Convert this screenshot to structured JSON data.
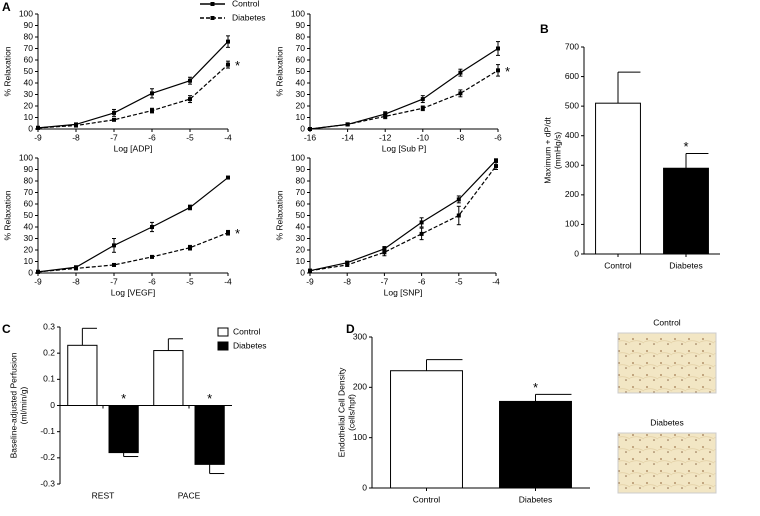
{
  "chart_data": [
    {
      "type": "line",
      "panel": "A",
      "xlabel": "Log [ADP]",
      "ylabel": "% Relaxation",
      "x": [
        -9,
        -8,
        -7,
        -6,
        -5,
        -4
      ],
      "xlim": [
        -9,
        -4
      ],
      "xticks": [
        -9,
        -8,
        -7,
        -6,
        -5,
        -4
      ],
      "ylim": [
        0,
        100
      ],
      "yticks": [
        0,
        10,
        20,
        30,
        40,
        50,
        60,
        70,
        80,
        90,
        100
      ],
      "legend": "top-right",
      "series": [
        {
          "name": "Control",
          "color": "#000000",
          "style": "solid",
          "values": [
            1,
            4,
            14,
            31,
            42,
            76
          ],
          "errors": [
            0.5,
            1,
            3,
            4,
            3,
            5
          ]
        },
        {
          "name": "Diabetes",
          "color": "#000000",
          "style": "dashed",
          "values": [
            1,
            3,
            8,
            16,
            26,
            56
          ],
          "errors": [
            0.5,
            1,
            1,
            2,
            3,
            3
          ]
        }
      ],
      "annotations": [
        "*"
      ]
    },
    {
      "type": "line",
      "xlabel": "Log [Sub P]",
      "ylabel": "% Relaxation",
      "x": [
        -16,
        -14,
        -12,
        -10,
        -8,
        -6
      ],
      "xlim": [
        -16,
        -6
      ],
      "xticks": [
        -16,
        -14,
        -12,
        -10,
        -8,
        -6
      ],
      "ylim": [
        0,
        100
      ],
      "yticks": [
        0,
        10,
        20,
        30,
        40,
        50,
        60,
        70,
        80,
        90,
        100
      ],
      "series": [
        {
          "name": "Control",
          "color": "#000000",
          "style": "solid",
          "values": [
            0,
            4,
            13,
            26,
            49,
            70
          ],
          "errors": [
            0.5,
            1,
            2,
            3,
            3,
            6
          ]
        },
        {
          "name": "Diabetes",
          "color": "#000000",
          "style": "dashed",
          "values": [
            0,
            4,
            11,
            18,
            31,
            51
          ],
          "errors": [
            0.5,
            1,
            2,
            2,
            3,
            5
          ]
        }
      ],
      "annotations": [
        "*"
      ]
    },
    {
      "type": "line",
      "xlabel": "Log [VEGF]",
      "ylabel": "% Relaxation",
      "x": [
        -9,
        -8,
        -7,
        -6,
        -5,
        -4
      ],
      "xlim": [
        -9,
        -4
      ],
      "xticks": [
        -9,
        -8,
        -7,
        -6,
        -5,
        -4
      ],
      "ylim": [
        0,
        100
      ],
      "yticks": [
        0,
        10,
        20,
        30,
        40,
        50,
        60,
        70,
        80,
        90,
        100
      ],
      "series": [
        {
          "name": "Control",
          "color": "#000000",
          "style": "solid",
          "values": [
            1,
            5,
            24,
            40,
            57,
            83
          ],
          "errors": [
            0.5,
            1,
            6,
            4,
            2,
            1
          ]
        },
        {
          "name": "Diabetes",
          "color": "#000000",
          "style": "dashed",
          "values": [
            1,
            4,
            7,
            14,
            22,
            35
          ],
          "errors": [
            0.5,
            1,
            1,
            1,
            2,
            2
          ]
        }
      ],
      "annotations": [
        "*"
      ]
    },
    {
      "type": "line",
      "xlabel": "Log [SNP]",
      "ylabel": "% Relaxation",
      "x": [
        -9,
        -8,
        -7,
        -6,
        -5,
        -4
      ],
      "xlim": [
        -9,
        -4
      ],
      "xticks": [
        -9,
        -8,
        -7,
        -6,
        -5,
        -4
      ],
      "ylim": [
        0,
        100
      ],
      "yticks": [
        0,
        10,
        20,
        30,
        40,
        50,
        60,
        70,
        80,
        90,
        100
      ],
      "series": [
        {
          "name": "Control",
          "color": "#000000",
          "style": "solid",
          "values": [
            2,
            9,
            21,
            44,
            64,
            98
          ],
          "errors": [
            0.5,
            1,
            2,
            4,
            3,
            1
          ]
        },
        {
          "name": "Diabetes",
          "color": "#000000",
          "style": "dashed",
          "values": [
            2,
            7,
            18,
            34,
            50,
            93
          ],
          "errors": [
            0.5,
            1,
            3,
            5,
            8,
            3
          ]
        }
      ]
    },
    {
      "type": "bar",
      "panel": "B",
      "ylabel": [
        "Maximum + dP/dt",
        "(mmHg/s)"
      ],
      "categories": [
        "Control",
        "Diabetes"
      ],
      "values": [
        510,
        290
      ],
      "errors": [
        105,
        50
      ],
      "colors": [
        "#ffffff",
        "#000000"
      ],
      "ylim": [
        0,
        700
      ],
      "yticks": [
        0,
        100,
        200,
        300,
        400,
        500,
        600,
        700
      ],
      "annotations": [
        "*"
      ]
    },
    {
      "type": "grouped-bar",
      "panel": "C",
      "ylabel": [
        "Baseline-adjusted Perfusion",
        "(ml/min/g)"
      ],
      "categories": [
        "REST",
        "PACE"
      ],
      "ylim": [
        -0.3,
        0.3
      ],
      "yticks": [
        -0.3,
        -0.2,
        -0.1,
        0,
        0.1,
        0.2,
        0.3
      ],
      "legend": "top-right",
      "series": [
        {
          "name": "Control",
          "color": "#ffffff",
          "values": [
            0.23,
            0.21
          ],
          "errors": [
            0.065,
            0.045
          ]
        },
        {
          "name": "Diabetes",
          "color": "#000000",
          "values": [
            -0.18,
            -0.225
          ],
          "errors": [
            0.015,
            0.035
          ]
        }
      ],
      "annotations": [
        "*",
        "*"
      ]
    },
    {
      "type": "bar",
      "panel": "D",
      "ylabel": [
        "Endothelial Cell Density",
        "(cells/hpf)"
      ],
      "categories": [
        "Control",
        "Diabetes"
      ],
      "values": [
        233,
        172
      ],
      "errors": [
        22,
        14
      ],
      "colors": [
        "#ffffff",
        "#000000"
      ],
      "ylim": [
        0,
        300
      ],
      "yticks": [
        0,
        100,
        200,
        300
      ],
      "annotations": [
        "*"
      ],
      "images": [
        "Control",
        "Diabetes"
      ]
    }
  ]
}
